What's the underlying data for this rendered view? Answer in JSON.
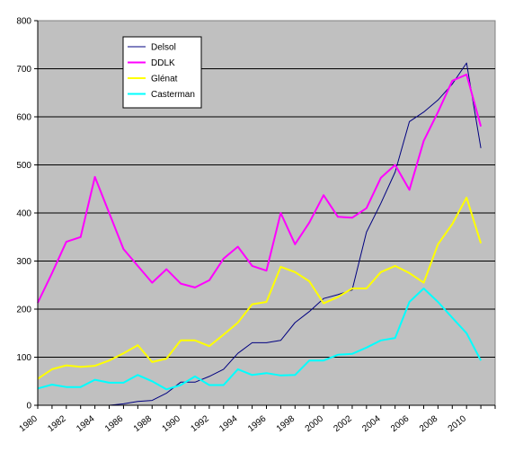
{
  "chart_data": {
    "type": "line",
    "title": "",
    "xlabel": "",
    "ylabel": "",
    "x": [
      1980,
      1981,
      1982,
      1983,
      1984,
      1985,
      1986,
      1987,
      1988,
      1989,
      1990,
      1991,
      1992,
      1993,
      1994,
      1995,
      1996,
      1997,
      1998,
      1999,
      2000,
      2001,
      2002,
      2003,
      2004,
      2005,
      2006,
      2007,
      2008,
      2009,
      2010,
      2011
    ],
    "xlim": [
      1980,
      2012
    ],
    "ylim": [
      0,
      800
    ],
    "x_tick_labels": [
      "1980",
      "1982",
      "1984",
      "1986",
      "1988",
      "1990",
      "1992",
      "1994",
      "1996",
      "1998",
      "2000",
      "2002",
      "2004",
      "2006",
      "2008",
      "2010"
    ],
    "y_tick_labels": [
      "0",
      "100",
      "200",
      "300",
      "400",
      "500",
      "600",
      "700",
      "800"
    ],
    "grid": "horizontal",
    "background": "#c0c0c0",
    "legend_position": "top-left",
    "series": [
      {
        "name": "Delsol",
        "color": "#000080",
        "values": [
          null,
          null,
          null,
          null,
          null,
          0,
          3,
          8,
          10,
          25,
          48,
          48,
          60,
          75,
          108,
          130,
          130,
          135,
          172,
          195,
          222,
          230,
          240,
          360,
          420,
          485,
          590,
          610,
          635,
          668,
          712,
          535
        ]
      },
      {
        "name": "DDLK",
        "color": "#ff00ff",
        "values": [
          213,
          275,
          340,
          350,
          475,
          400,
          325,
          290,
          255,
          283,
          253,
          245,
          260,
          305,
          330,
          290,
          280,
          400,
          335,
          380,
          437,
          392,
          390,
          410,
          473,
          500,
          448,
          550,
          610,
          675,
          688,
          580
        ]
      },
      {
        "name": "Glénat",
        "color": "#ffff00",
        "values": [
          55,
          75,
          83,
          80,
          82,
          93,
          108,
          125,
          90,
          97,
          135,
          135,
          123,
          147,
          172,
          210,
          215,
          288,
          277,
          258,
          212,
          225,
          243,
          243,
          277,
          290,
          275,
          255,
          335,
          377,
          432,
          337
        ]
      },
      {
        "name": "Casterman",
        "color": "#00ffff",
        "values": [
          35,
          43,
          38,
          38,
          53,
          47,
          47,
          63,
          50,
          33,
          42,
          60,
          42,
          42,
          75,
          63,
          67,
          62,
          63,
          93,
          93,
          105,
          107,
          120,
          135,
          140,
          215,
          243,
          215,
          182,
          150,
          93
        ]
      }
    ]
  }
}
